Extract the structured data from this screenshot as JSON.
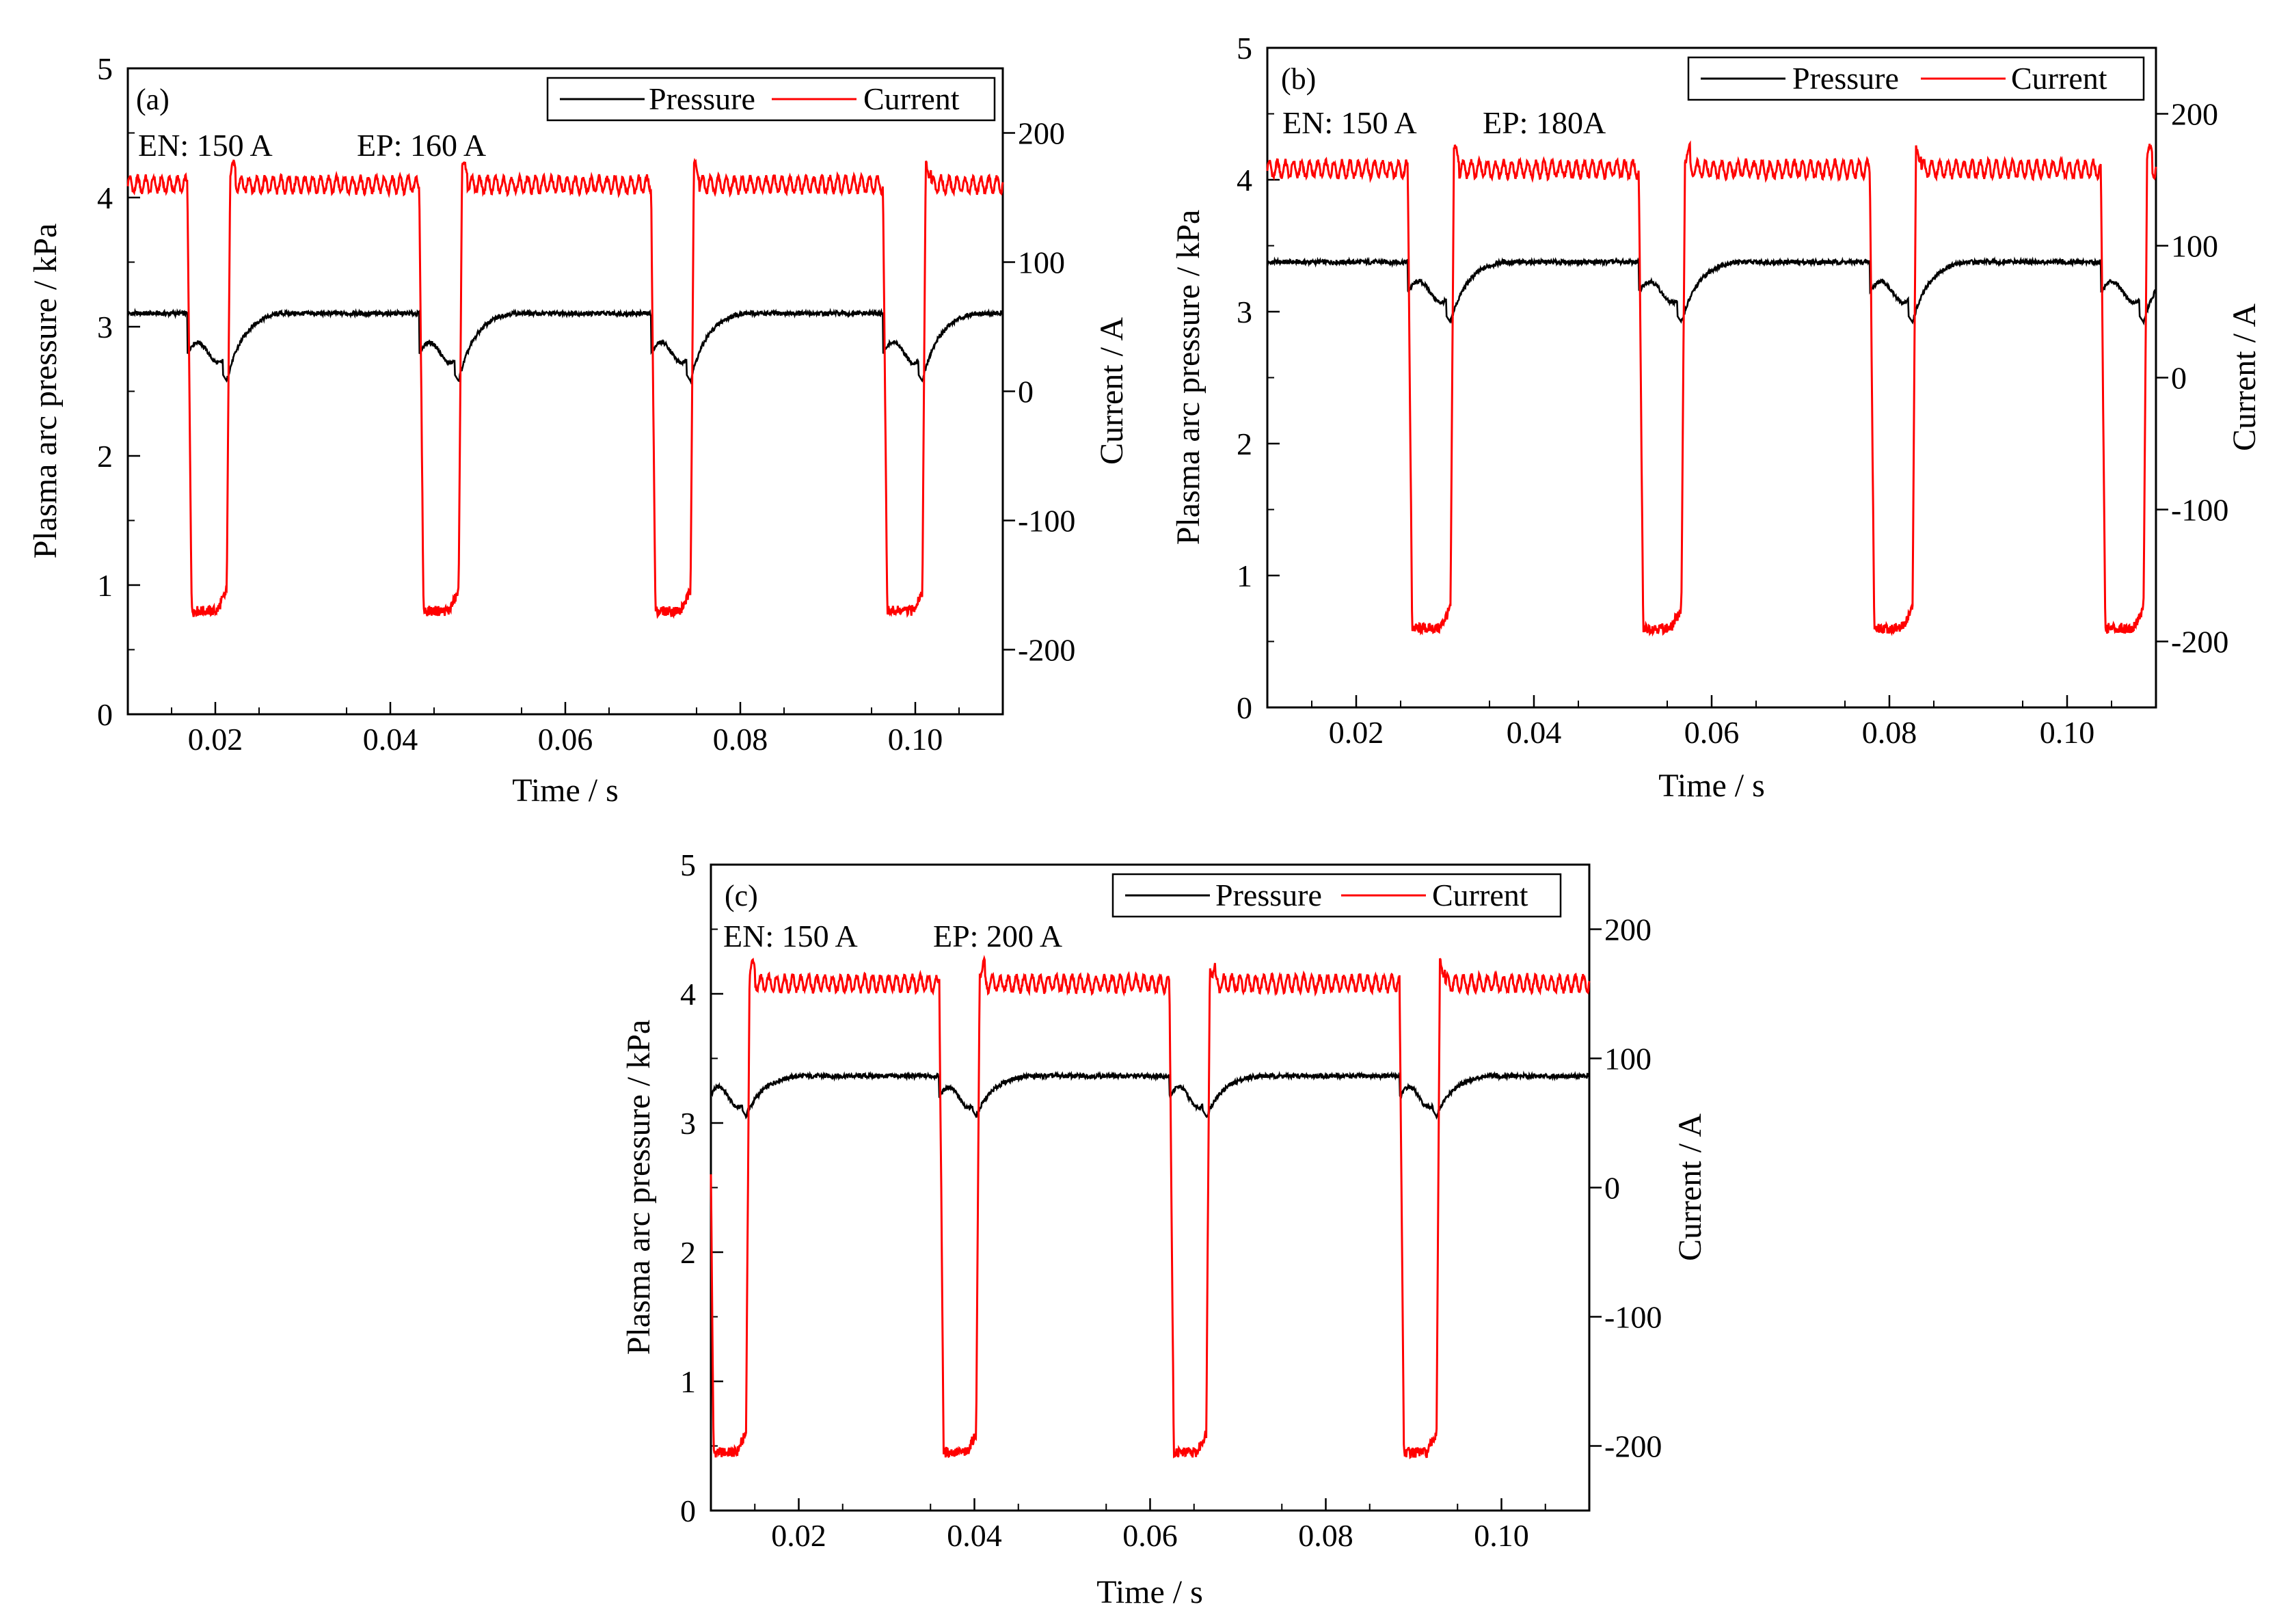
{
  "colors": {
    "pressure": "#000000",
    "current": "#ff0000",
    "axis": "#000000"
  },
  "chart_data": [
    {
      "type": "line",
      "panel_label": "(a)",
      "annotation_en": "EN: 150 A",
      "annotation_ep": "EP: 160 A",
      "xlabel": "Time / s",
      "ylabel_left": "Plasma arc pressure / kPa",
      "ylabel_right": "Current / A",
      "xlim": [
        0.01,
        0.11
      ],
      "ylim_left": [
        0,
        5
      ],
      "ylim_right": [
        -250,
        250
      ],
      "x_ticks": [
        "0.02",
        "0.04",
        "0.06",
        "0.08",
        "0.10"
      ],
      "y_left_ticks": [
        "0",
        "1",
        "2",
        "3",
        "4",
        "5"
      ],
      "y_right_ticks": [
        "-200",
        "-100",
        "0",
        "100",
        "200"
      ],
      "legend": [
        "Pressure",
        "Current"
      ],
      "current_wave": {
        "period": 0.0265,
        "first_drop": 0.0168,
        "negative_width": 0.0045,
        "ep_level": 160,
        "en_level": -170
      },
      "pressure_wave": {
        "ep_level": 3.13,
        "en_level": 2.85,
        "dip": 2.58
      }
    },
    {
      "type": "line",
      "panel_label": "(b)",
      "annotation_en": "EN: 150 A",
      "annotation_ep": "EP: 180A",
      "xlabel": "Time / s",
      "ylabel_left": "Plasma arc pressure / kPa",
      "ylabel_right": "Current / A",
      "xlim": [
        0.01,
        0.11
      ],
      "ylim_left": [
        0,
        5
      ],
      "ylim_right": [
        -250,
        250
      ],
      "x_ticks": [
        "0.02",
        "0.04",
        "0.06",
        "0.08",
        "0.10"
      ],
      "y_left_ticks": [
        "0",
        "1",
        "2",
        "3",
        "4",
        "5"
      ],
      "y_right_ticks": [
        "-200",
        "-100",
        "0",
        "100",
        "200"
      ],
      "legend": [
        "Pressure",
        "Current"
      ],
      "current_wave": {
        "period": 0.026,
        "first_drop": 0.0258,
        "negative_width": 0.0048,
        "ep_level": 158,
        "en_level": -190
      },
      "pressure_wave": {
        "ep_level": 3.4,
        "en_level": 3.2,
        "dip": 2.92
      }
    },
    {
      "type": "line",
      "panel_label": "(c)",
      "annotation_en": "EN: 150 A",
      "annotation_ep": "EP: 200 A",
      "xlabel": "Time / s",
      "ylabel_left": "Plasma arc pressure / kPa",
      "ylabel_right": "Current / A",
      "xlim": [
        0.01,
        0.11
      ],
      "ylim_left": [
        0,
        5
      ],
      "ylim_right": [
        -250,
        250
      ],
      "x_ticks": [
        "0.02",
        "0.04",
        "0.06",
        "0.08",
        "0.10"
      ],
      "y_left_ticks": [
        "0",
        "1",
        "2",
        "3",
        "4",
        "5"
      ],
      "y_right_ticks": [
        "-200",
        "-100",
        "0",
        "100",
        "200"
      ],
      "legend": [
        "Pressure",
        "Current"
      ],
      "current_wave": {
        "period": 0.0262,
        "first_drop": 0.0098,
        "negative_width": 0.0042,
        "ep_level": 158,
        "en_level": -205
      },
      "pressure_wave": {
        "ep_level": 3.38,
        "en_level": 3.25,
        "dip": 3.05
      }
    }
  ]
}
